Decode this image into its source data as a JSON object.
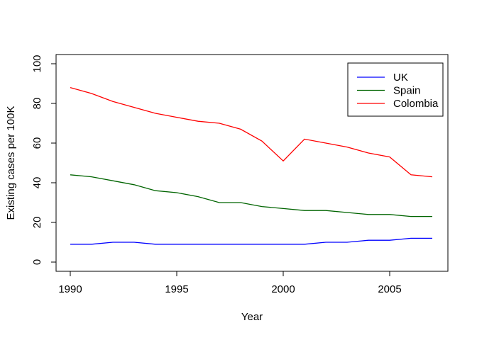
{
  "chart_data": {
    "type": "line",
    "title": "",
    "xlabel": "Year",
    "ylabel": "Existing cases per 100K",
    "x": [
      1990,
      1991,
      1992,
      1993,
      1994,
      1995,
      1996,
      1997,
      1998,
      1999,
      2000,
      2001,
      2002,
      2003,
      2004,
      2005,
      2006,
      2007
    ],
    "series": [
      {
        "name": "UK",
        "color": "#0000ff",
        "values": [
          9,
          9,
          10,
          10,
          9,
          9,
          9,
          9,
          9,
          9,
          9,
          9,
          10,
          10,
          11,
          11,
          12,
          12
        ]
      },
      {
        "name": "Spain",
        "color": "#006400",
        "values": [
          44,
          43,
          41,
          39,
          36,
          35,
          33,
          30,
          30,
          28,
          27,
          26,
          26,
          25,
          24,
          24,
          23,
          23
        ]
      },
      {
        "name": "Colombia",
        "color": "#ff0000",
        "values": [
          88,
          85,
          81,
          78,
          75,
          73,
          71,
          70,
          67,
          61,
          51,
          62,
          60,
          58,
          55,
          53,
          44,
          43
        ]
      }
    ],
    "xticks": [
      1990,
      1995,
      2000,
      2005
    ],
    "yticks": [
      0,
      20,
      40,
      60,
      80,
      100
    ],
    "xlim": [
      1989.3,
      2007.7
    ],
    "ylim": [
      -4.6,
      104.6
    ],
    "grid": false,
    "legend": {
      "position": "top-right",
      "border": "#000000",
      "background": "#ffffff"
    },
    "colors": {
      "axis": "#000000",
      "background": "#ffffff"
    }
  }
}
